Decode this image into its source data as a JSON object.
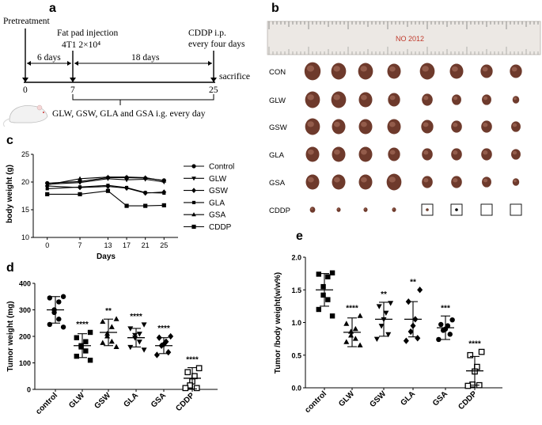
{
  "panels": {
    "a": "a",
    "b": "b",
    "c": "c",
    "d": "d",
    "e": "e"
  },
  "timeline": {
    "pretreatment": "Pretreatment",
    "injection_line1": "Fat pad injection",
    "injection_line2": "4T1 2×10⁴",
    "cddp_line1": "CDDP i.p.",
    "cddp_line2": "every four days",
    "sacrifice": "sacrifice",
    "span1": "6 days",
    "span2": "18 days",
    "day0": "0",
    "day7": "7",
    "day25": "25",
    "treatment": "GLW, GSW, GLA and GSA  i.g. every day"
  },
  "photo": {
    "rows": [
      "CON",
      "GLW",
      "GSW",
      "GLA",
      "GSA",
      "CDDP"
    ],
    "cddp_present": [
      true,
      true,
      true,
      true,
      "small",
      "dot",
      false,
      false
    ],
    "ruler_text": "NO 2012"
  },
  "chart_data": [
    {
      "id": "c",
      "type": "line",
      "title": "",
      "xlabel": "Days",
      "ylabel": "body weight (g)",
      "x": [
        0,
        7,
        13,
        17,
        21,
        25
      ],
      "xlim": [
        -3,
        28
      ],
      "ylim": [
        10,
        25
      ],
      "yticks": [
        10,
        15,
        20,
        25
      ],
      "series": [
        {
          "name": "Control",
          "marker": "circle",
          "values": [
            19.8,
            20.1,
            20.8,
            20.8,
            20.7,
            20.3
          ]
        },
        {
          "name": "GLW",
          "marker": "tri-down",
          "values": [
            19.6,
            19.9,
            20.6,
            20.4,
            20.5,
            20.0
          ]
        },
        {
          "name": "GSW",
          "marker": "diamond",
          "values": [
            19.3,
            19.0,
            19.2,
            18.9,
            18.0,
            18.2
          ]
        },
        {
          "name": "GLA",
          "marker": "square-small",
          "values": [
            18.8,
            19.1,
            19.4,
            19.0,
            18.1,
            18.0
          ]
        },
        {
          "name": "GSA",
          "marker": "tri-up",
          "values": [
            19.5,
            20.6,
            20.9,
            20.9,
            20.8,
            20.2
          ]
        },
        {
          "name": "CDDP",
          "marker": "square",
          "values": [
            17.8,
            17.8,
            18.4,
            15.7,
            15.7,
            15.8
          ]
        }
      ]
    },
    {
      "id": "d",
      "type": "scatter",
      "xlabel": "",
      "ylabel": "Tumor weight (mg)",
      "categories": [
        "control",
        "GLW",
        "GSW",
        "GLA",
        "GSA",
        "CDDP"
      ],
      "ylim": [
        0,
        400
      ],
      "yticks": [
        0,
        100,
        200,
        300,
        400
      ],
      "markers": [
        "circle",
        "square",
        "tri-up",
        "tri-down",
        "diamond",
        "open-square"
      ],
      "significance": [
        "",
        "****",
        "**",
        "****",
        "****",
        "****"
      ],
      "means": [
        300,
        165,
        215,
        195,
        165,
        42
      ],
      "sds": [
        50,
        45,
        50,
        35,
        30,
        40
      ],
      "points": [
        [
          350,
          345,
          330,
          300,
          290,
          265,
          245,
          235
        ],
        [
          215,
          195,
          180,
          165,
          160,
          145,
          125,
          110
        ],
        [
          265,
          255,
          235,
          210,
          200,
          180,
          175,
          160
        ],
        [
          245,
          230,
          210,
          205,
          195,
          180,
          160,
          150
        ],
        [
          200,
          195,
          180,
          170,
          165,
          140,
          130
        ],
        [
          80,
          65,
          50,
          30,
          15,
          5,
          5
        ]
      ]
    },
    {
      "id": "e",
      "type": "scatter",
      "xlabel": "",
      "ylabel": "Tumor /body weight(w/w%)",
      "categories": [
        "control",
        "GLW",
        "GSW",
        "GLA",
        "GSA",
        "CDDP"
      ],
      "ylim": [
        0,
        2.0
      ],
      "yticks": [
        0.0,
        0.5,
        1.0,
        1.5,
        2.0
      ],
      "markers": [
        "square",
        "tri-up",
        "tri-down",
        "diamond",
        "circle",
        "open-square"
      ],
      "significance": [
        "",
        "****",
        "**",
        "**",
        "***",
        "****"
      ],
      "means": [
        1.5,
        0.85,
        1.05,
        1.05,
        0.92,
        0.26
      ],
      "sds": [
        0.25,
        0.22,
        0.26,
        0.27,
        0.18,
        0.22
      ],
      "points": [
        [
          1.76,
          1.74,
          1.7,
          1.55,
          1.42,
          1.35,
          1.2,
          1.1
        ],
        [
          1.1,
          0.98,
          0.9,
          0.86,
          0.8,
          0.75,
          0.7,
          0.65
        ],
        [
          1.3,
          1.25,
          1.15,
          1.05,
          0.95,
          0.82,
          0.75
        ],
        [
          1.5,
          1.32,
          1.05,
          0.95,
          0.86,
          0.76,
          0.72
        ],
        [
          1.04,
          0.97,
          0.95,
          0.9,
          0.88,
          0.82,
          0.74
        ],
        [
          0.55,
          0.5,
          0.32,
          0.25,
          0.05,
          0.04,
          0.03
        ]
      ]
    }
  ]
}
